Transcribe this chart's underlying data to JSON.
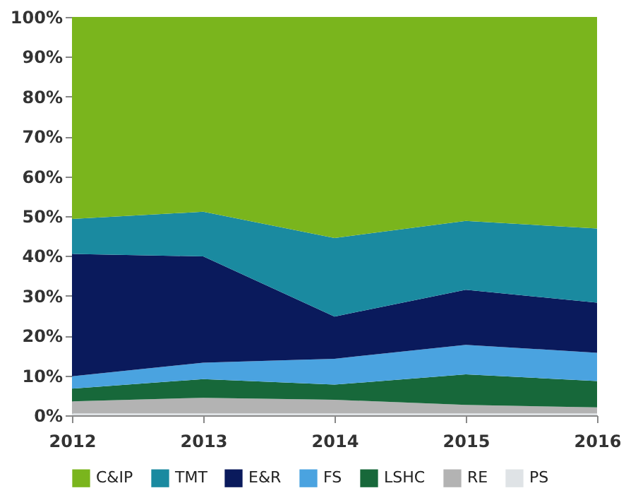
{
  "chart_data": {
    "type": "area",
    "stacked": true,
    "x": [
      2012,
      2013,
      2014,
      2015,
      2016
    ],
    "xlim": [
      2012,
      2016
    ],
    "xticks": [
      2012,
      2013,
      2014,
      2015,
      2016
    ],
    "ylim": [
      0,
      100
    ],
    "yticks": [
      {
        "value": 0,
        "label": "0%"
      },
      {
        "value": 10,
        "label": "10%"
      },
      {
        "value": 20,
        "label": "20%"
      },
      {
        "value": 30,
        "label": "30%"
      },
      {
        "value": 40,
        "label": "40%"
      },
      {
        "value": 50,
        "label": "50%"
      },
      {
        "value": 60,
        "label": "60%"
      },
      {
        "value": 70,
        "label": "70%"
      },
      {
        "value": 80,
        "label": "80%"
      },
      {
        "value": 90,
        "label": "90%"
      },
      {
        "value": 100,
        "label": "100%"
      }
    ],
    "grid": false,
    "legend": "bottom",
    "series": [
      {
        "name": "PS",
        "color": "#dfe3e6",
        "values": [
          0.5,
          0.5,
          0.5,
          0.5,
          0.5
        ]
      },
      {
        "name": "RE",
        "color": "#b3b3b3",
        "values": [
          3.0,
          3.9,
          3.4,
          2.1,
          1.5
        ]
      },
      {
        "name": "LSHC",
        "color": "#17683a",
        "values": [
          3.2,
          4.7,
          3.8,
          7.7,
          6.6
        ]
      },
      {
        "name": "FS",
        "color": "#4aa3e0",
        "values": [
          3.1,
          4.1,
          6.5,
          7.4,
          7.1
        ]
      },
      {
        "name": "E&R",
        "color": "#0a1a5c",
        "values": [
          30.7,
          26.7,
          10.6,
          13.8,
          12.6
        ]
      },
      {
        "name": "TMT",
        "color": "#1a8aa0",
        "values": [
          8.8,
          11.2,
          19.7,
          17.3,
          18.6
        ]
      },
      {
        "name": "C&IP",
        "color": "#7ab51d",
        "values": [
          50.7,
          48.9,
          55.5,
          51.2,
          53.1
        ]
      }
    ]
  }
}
